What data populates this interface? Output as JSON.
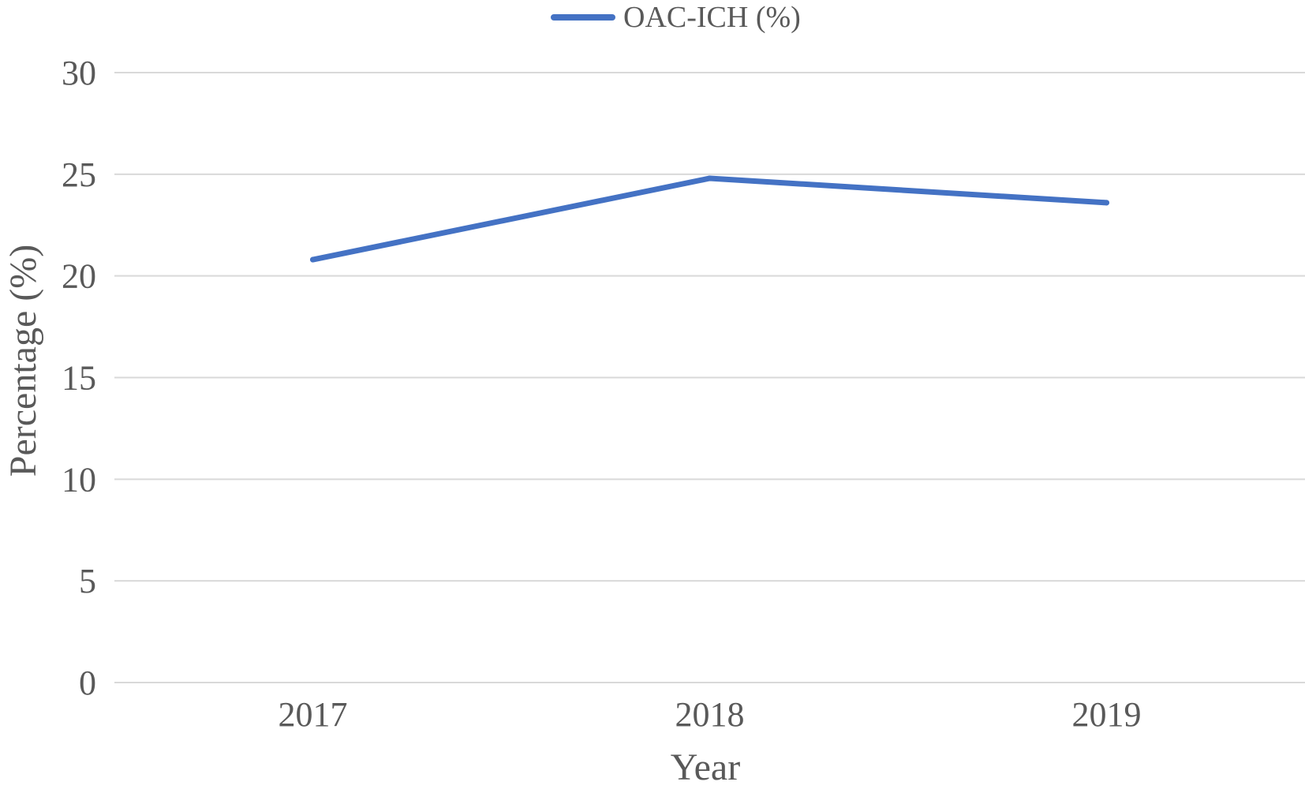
{
  "chart_data": {
    "type": "line",
    "categories": [
      "2017",
      "2018",
      "2019"
    ],
    "series": [
      {
        "name": "OAC-ICH (%)",
        "values": [
          20.8,
          24.8,
          23.6
        ],
        "color": "#4472c4"
      }
    ],
    "title": "",
    "xlabel": "Year",
    "ylabel": "Percentage (%)",
    "ylim": [
      0,
      30
    ],
    "yticks": [
      "0",
      "5",
      "10",
      "15",
      "20",
      "25",
      "30"
    ],
    "grid": true,
    "legend_position": "top-center",
    "colors": {
      "gridline": "#d9d9d9",
      "text": "#595959"
    }
  }
}
